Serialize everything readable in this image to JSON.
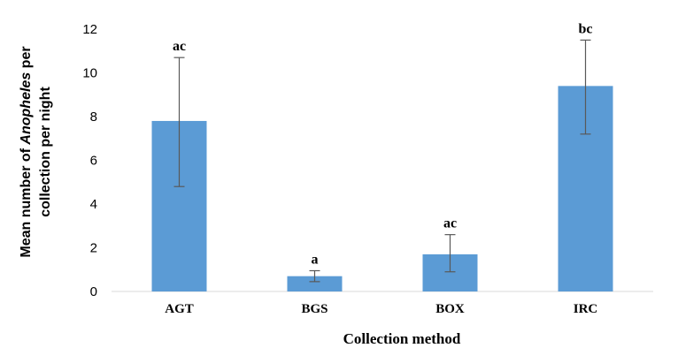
{
  "chart_data": {
    "type": "bar",
    "categories": [
      "AGT",
      "BGS",
      "BOX",
      "IRC"
    ],
    "values": [
      7.8,
      0.7,
      1.7,
      9.4
    ],
    "error_low": [
      4.8,
      0.45,
      0.9,
      7.2
    ],
    "error_high": [
      10.7,
      0.95,
      2.6,
      11.5
    ],
    "significance_labels": [
      "ac",
      "a",
      "ac",
      "bc"
    ],
    "title": "",
    "xlabel": "Collection method",
    "ylabel_line1_prefix": "Mean number of ",
    "ylabel_line1_italic": "Anopheles",
    "ylabel_line1_suffix": " per",
    "ylabel_line2": "collection per night",
    "ylim": [
      0,
      12
    ],
    "yticks": [
      "0",
      "2",
      "4",
      "6",
      "8",
      "10",
      "12"
    ],
    "grid": false,
    "bar_color": "#5b9bd5",
    "error_bar_color": "#595959"
  }
}
